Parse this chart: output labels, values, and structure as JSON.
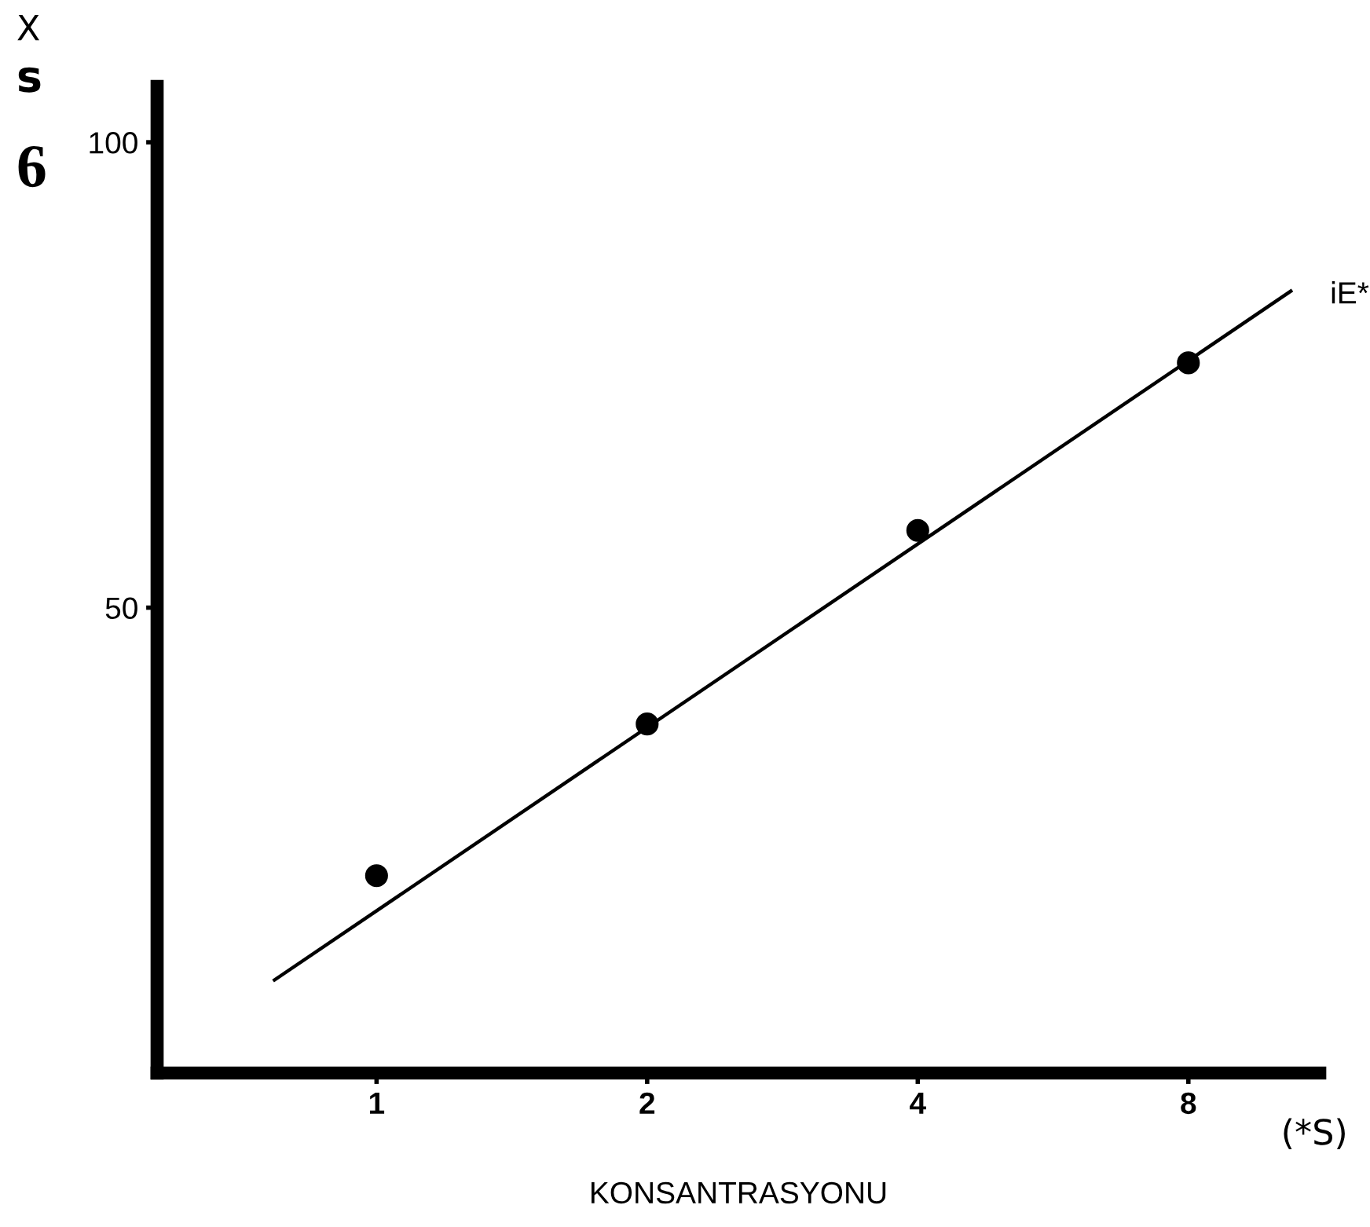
{
  "chart_data": {
    "type": "scatter",
    "xlabel": "KONSANTRASYONU",
    "log": "x",
    "annotations": [
      "X",
      "s",
      "6",
      {
        "text": "iE*",
        "x": 10.4,
        "y": 84
      },
      "(*S)"
    ],
    "x": [
      1,
      2,
      4,
      8
    ],
    "series": [
      {
        "color": "#000000",
        "marker": "circle",
        "values": [
          21.2,
          37.5,
          58.3,
          76.3
        ]
      },
      {
        "type": "line",
        "color": "#000000",
        "marker": "none",
        "line_style": "solid",
        "x": [
          0.77,
          10.4
        ],
        "values": [
          10,
          84
        ]
      }
    ],
    "xlim": [
      0.57,
      11.2
    ],
    "xticks": [
      1,
      2,
      4,
      8
    ],
    "ylim": [
      0,
      106
    ],
    "yticks": [
      50,
      100
    ],
    "grid": false,
    "legend": false
  }
}
